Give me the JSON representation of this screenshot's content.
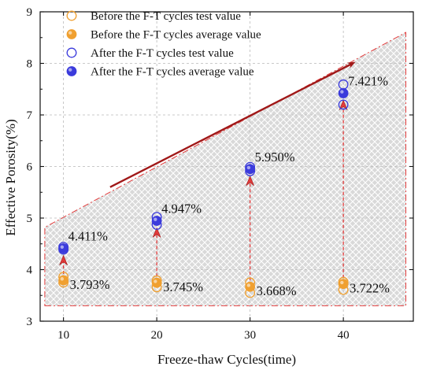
{
  "chart_data": {
    "type": "scatter",
    "title": "",
    "xlabel": "Freeze-thaw Cycles(time)",
    "ylabel": "Effective Porosity(%)",
    "xlim": [
      7.5,
      47.5
    ],
    "ylim": [
      3,
      9
    ],
    "x_ticks": [
      10,
      20,
      30,
      40
    ],
    "y_ticks": [
      3,
      4,
      5,
      6,
      7,
      8,
      9
    ],
    "grid": true,
    "legend_position": "top-left",
    "colors": {
      "before": "#f0a030",
      "after": "#3b3bdc",
      "arrow": "#a01818",
      "dashed": "#e23b3b",
      "hatch_fill": "#d9d9d9",
      "hatch_line": "#ffffff",
      "grid": "#b8b8b8"
    },
    "series": [
      {
        "name": "Before the F-T cycles test value",
        "style": "open-circle",
        "color": "#f0a030",
        "points": [
          {
            "x": 10,
            "y": 3.86
          },
          {
            "x": 10,
            "y": 3.75
          },
          {
            "x": 20,
            "y": 3.79
          },
          {
            "x": 20,
            "y": 3.66
          },
          {
            "x": 30,
            "y": 3.75
          },
          {
            "x": 30,
            "y": 3.55
          },
          {
            "x": 40,
            "y": 3.76
          },
          {
            "x": 40,
            "y": 3.61
          }
        ]
      },
      {
        "name": "Before the F-T cycles average value",
        "style": "filled-circle",
        "color": "#f0a030",
        "points": [
          {
            "x": 10,
            "y": 3.793
          },
          {
            "x": 20,
            "y": 3.745
          },
          {
            "x": 30,
            "y": 3.668
          },
          {
            "x": 40,
            "y": 3.722
          }
        ]
      },
      {
        "name": "After the F-T cycles test value",
        "style": "open-circle",
        "color": "#3b3bdc",
        "points": [
          {
            "x": 10,
            "y": 4.44
          },
          {
            "x": 10,
            "y": 4.39
          },
          {
            "x": 20,
            "y": 5.02
          },
          {
            "x": 20,
            "y": 4.87
          },
          {
            "x": 30,
            "y": 5.99
          },
          {
            "x": 30,
            "y": 5.91
          },
          {
            "x": 40,
            "y": 7.59
          },
          {
            "x": 40,
            "y": 7.2
          }
        ]
      },
      {
        "name": "After the F-T cycles average value",
        "style": "filled-circle",
        "color": "#3b3bdc",
        "points": [
          {
            "x": 10,
            "y": 4.411
          },
          {
            "x": 20,
            "y": 4.947
          },
          {
            "x": 30,
            "y": 5.95
          },
          {
            "x": 40,
            "y": 7.421
          }
        ]
      }
    ],
    "annotations": [
      {
        "text": "3.793%",
        "x": 10,
        "y": 3.793,
        "anchor": "right"
      },
      {
        "text": "3.745%",
        "x": 20,
        "y": 3.745,
        "anchor": "right"
      },
      {
        "text": "3.668%",
        "x": 30,
        "y": 3.668,
        "anchor": "right"
      },
      {
        "text": "3.722%",
        "x": 40,
        "y": 3.722,
        "anchor": "right"
      },
      {
        "text": "4.411%",
        "x": 10,
        "y": 4.411,
        "anchor": "upper-right"
      },
      {
        "text": "4.947%",
        "x": 20,
        "y": 4.947,
        "anchor": "upper-right"
      },
      {
        "text": "5.950%",
        "x": 30,
        "y": 5.95,
        "anchor": "upper-right"
      },
      {
        "text": "7.421%",
        "x": 40,
        "y": 7.421,
        "anchor": "upper-right"
      }
    ],
    "trend_arrow": {
      "from": {
        "x": 15,
        "y": 5.6
      },
      "to": {
        "x": 41,
        "y": 8.0
      }
    },
    "shaded_region": [
      {
        "x": 8.0,
        "y": 3.3
      },
      {
        "x": 46.7,
        "y": 3.3
      },
      {
        "x": 46.7,
        "y": 8.6
      },
      {
        "x": 8.0,
        "y": 4.82
      }
    ]
  }
}
